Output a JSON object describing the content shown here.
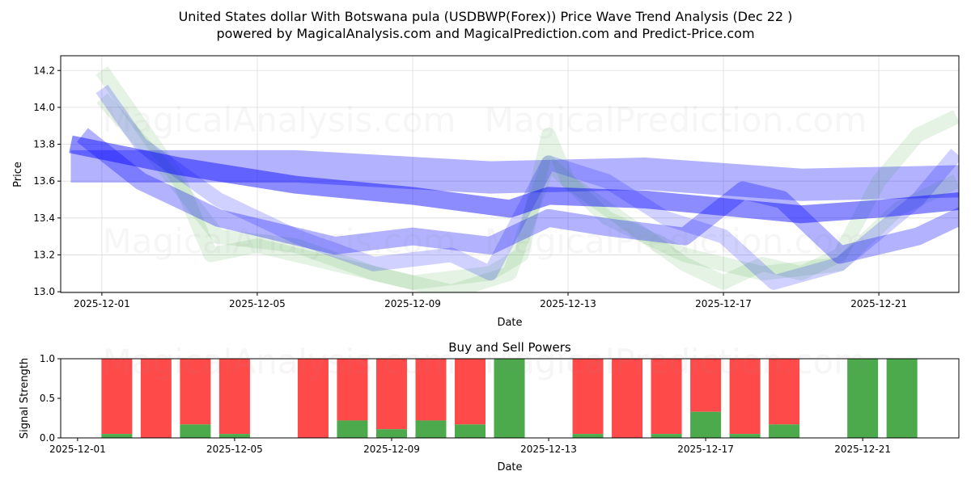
{
  "chart_data": [
    {
      "type": "line",
      "title": "United States dollar With Botswana pula (USDBWP(Forex)) Price Wave Trend Analysis (Dec 22 )",
      "subtitle": "powered by MagicalAnalysis.com and MagicalPrediction.com and Predict-Price.com",
      "xlabel": "Date",
      "ylabel": "Price",
      "xlim_days_from_2025-12-01": [
        -1.06,
        22.06
      ],
      "ylim": [
        12.996,
        14.28
      ],
      "x_ticks": [
        "2025-12-01",
        "2025-12-05",
        "2025-12-09",
        "2025-12-13",
        "2025-12-17",
        "2025-12-21"
      ],
      "x_tick_days": [
        0,
        4,
        8,
        12,
        16,
        20
      ],
      "y_ticks": [
        "13.0",
        "13.2",
        "13.4",
        "13.6",
        "13.8",
        "14.0",
        "14.2"
      ],
      "y_tick_values": [
        13.0,
        13.2,
        13.4,
        13.6,
        13.8,
        14.0,
        14.2
      ],
      "grid": true,
      "watermarks": [
        "MagicalAnalysis.com",
        "MagicalPrediction.com"
      ],
      "series": [
        {
          "name": "wave-band-wide",
          "color": "#0000ff",
          "opacity": 0.3,
          "width": 40,
          "days": [
            -0.8,
            5,
            10,
            14,
            18,
            22.3
          ],
          "values": [
            13.68,
            13.68,
            13.62,
            13.64,
            13.58,
            13.6
          ]
        },
        {
          "name": "wave-green-1",
          "color": "#2ca02c",
          "opacity": 0.12,
          "width": 18,
          "days": [
            0,
            1,
            2,
            2.8,
            4,
            6,
            8,
            10,
            10.8,
            11.5,
            12,
            13,
            14,
            15,
            16,
            17,
            18,
            19,
            20,
            21,
            22
          ],
          "values": [
            14.2,
            13.9,
            13.6,
            13.2,
            13.25,
            13.15,
            13.05,
            13.1,
            13.2,
            13.85,
            13.6,
            13.45,
            13.3,
            13.15,
            13.05,
            13.15,
            13.1,
            13.2,
            13.6,
            13.85,
            13.95
          ]
        },
        {
          "name": "wave-green-2",
          "color": "#2ca02c",
          "opacity": 0.12,
          "width": 18,
          "days": [
            0,
            1.5,
            3,
            5,
            7,
            9,
            10.5,
            11.5,
            13,
            15,
            17,
            19,
            20.5,
            22
          ],
          "values": [
            14.05,
            13.7,
            13.3,
            13.25,
            13.1,
            13.0,
            13.1,
            13.7,
            13.4,
            13.2,
            13.1,
            13.15,
            13.45,
            13.6
          ]
        },
        {
          "name": "wave-blue-2",
          "color": "#0000ff",
          "opacity": 0.18,
          "width": 18,
          "days": [
            0,
            1,
            3,
            5,
            7,
            9,
            10,
            11.5,
            13,
            14.5,
            16,
            17.3,
            19,
            21,
            22
          ],
          "values": [
            14.1,
            13.8,
            13.5,
            13.3,
            13.15,
            13.2,
            13.1,
            13.7,
            13.6,
            13.4,
            13.3,
            13.05,
            13.15,
            13.5,
            13.75
          ]
        },
        {
          "name": "wave-blue-lower",
          "color": "#0000ff",
          "opacity": 0.3,
          "width": 22,
          "days": [
            -0.5,
            1,
            3,
            6,
            8,
            10,
            11.5,
            13,
            15,
            16.5,
            17.5,
            19,
            21,
            22.5
          ],
          "values": [
            13.85,
            13.6,
            13.4,
            13.25,
            13.3,
            13.25,
            13.4,
            13.35,
            13.3,
            13.55,
            13.5,
            13.2,
            13.3,
            13.45
          ]
        },
        {
          "name": "wave-blue-main",
          "color": "#0000ff",
          "opacity": 0.45,
          "width": 22,
          "days": [
            -0.8,
            2,
            5,
            8,
            10.5,
            11.5,
            14,
            18,
            20,
            22.5
          ],
          "values": [
            13.8,
            13.68,
            13.58,
            13.52,
            13.45,
            13.52,
            13.5,
            13.42,
            13.45,
            13.5
          ]
        }
      ]
    },
    {
      "type": "bar",
      "title": "Buy and Sell Powers",
      "xlabel": "Date",
      "ylabel": "Signal Strength",
      "ylim": [
        0,
        1.0
      ],
      "xlim_days_from_2025-12-01": [
        -0.43,
        22.45
      ],
      "x_ticks": [
        "2025-12-01",
        "2025-12-05",
        "2025-12-09",
        "2025-12-13",
        "2025-12-17",
        "2025-12-21"
      ],
      "x_tick_days": [
        0,
        4,
        8,
        12,
        16,
        20
      ],
      "y_ticks": [
        "0.0",
        "0.5",
        "1.0"
      ],
      "y_tick_values": [
        0,
        0.5,
        1.0
      ],
      "colors": {
        "buy": "#4caa4c",
        "sell": "#ff4a4a"
      },
      "categories": [
        "2025-12-02",
        "2025-12-03",
        "2025-12-04",
        "2025-12-05",
        "2025-12-07",
        "2025-12-08",
        "2025-12-09",
        "2025-12-10",
        "2025-12-11",
        "2025-12-12",
        "2025-12-14",
        "2025-12-15",
        "2025-12-16",
        "2025-12-17",
        "2025-12-18",
        "2025-12-19",
        "2025-12-21",
        "2025-12-22"
      ],
      "days": [
        1,
        2,
        3,
        4,
        6,
        7,
        8,
        9,
        10,
        11,
        13,
        14,
        15,
        16,
        17,
        18,
        20,
        21
      ],
      "series": [
        {
          "name": "Buy",
          "values": [
            0.05,
            0,
            0.17,
            0.05,
            0,
            0.22,
            0.11,
            0.22,
            0.17,
            1.0,
            0.05,
            0,
            0.05,
            0.33,
            0.05,
            0.17,
            1.0,
            1.0
          ]
        },
        {
          "name": "Sell",
          "values": [
            0.95,
            1.0,
            0.83,
            0.95,
            1.0,
            0.78,
            0.89,
            0.78,
            0.83,
            0,
            0.95,
            1.0,
            0.95,
            0.67,
            0.95,
            0.83,
            0,
            0
          ]
        }
      ]
    }
  ]
}
